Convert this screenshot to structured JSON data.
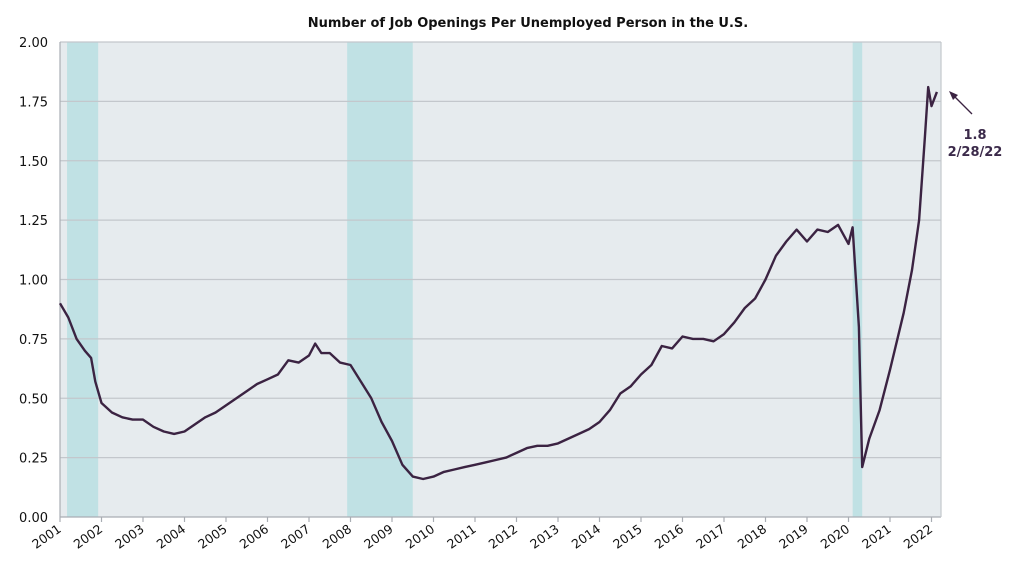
{
  "chart_data": {
    "type": "line",
    "title": "Number of Job Openings Per Unemployed Person in the U.S.",
    "xlabel": "",
    "ylabel": "",
    "xlim": [
      2001,
      2022.23
    ],
    "ylim": [
      0,
      2
    ],
    "grid": true,
    "y_ticks": [
      "0.00",
      "0.25",
      "0.50",
      "0.75",
      "1.00",
      "1.25",
      "1.50",
      "1.75",
      "2.00"
    ],
    "x_ticks": [
      "2001",
      "2002",
      "2003",
      "2004",
      "2005",
      "2006",
      "2007",
      "2008",
      "2009",
      "2010",
      "2011",
      "2012",
      "2013",
      "2014",
      "2015",
      "2016",
      "2017",
      "2018",
      "2019",
      "2020",
      "2021",
      "2022"
    ],
    "recessions": [
      [
        2001.17,
        2001.92
      ],
      [
        2007.92,
        2009.5
      ],
      [
        2020.1,
        2020.33
      ]
    ],
    "series": [
      {
        "name": "Job openings per unemployed person",
        "color": "#3b2342",
        "x": [
          2001.0,
          2001.2,
          2001.4,
          2001.6,
          2001.75,
          2001.85,
          2002.0,
          2002.25,
          2002.5,
          2002.75,
          2003.0,
          2003.25,
          2003.5,
          2003.75,
          2004.0,
          2004.25,
          2004.5,
          2004.75,
          2005.0,
          2005.25,
          2005.5,
          2005.75,
          2006.0,
          2006.25,
          2006.5,
          2006.75,
          2007.0,
          2007.15,
          2007.3,
          2007.5,
          2007.75,
          2008.0,
          2008.25,
          2008.5,
          2008.75,
          2009.0,
          2009.25,
          2009.5,
          2009.75,
          2010.0,
          2010.25,
          2010.5,
          2010.75,
          2011.0,
          2011.25,
          2011.5,
          2011.75,
          2012.0,
          2012.25,
          2012.5,
          2012.75,
          2013.0,
          2013.25,
          2013.5,
          2013.75,
          2014.0,
          2014.25,
          2014.5,
          2014.75,
          2015.0,
          2015.25,
          2015.5,
          2015.75,
          2016.0,
          2016.25,
          2016.5,
          2016.75,
          2017.0,
          2017.25,
          2017.5,
          2017.75,
          2018.0,
          2018.25,
          2018.5,
          2018.75,
          2019.0,
          2019.25,
          2019.5,
          2019.75,
          2020.0,
          2020.1,
          2020.25,
          2020.33,
          2020.5,
          2020.75,
          2021.0,
          2021.33,
          2021.53,
          2021.7,
          2021.84,
          2021.92,
          2022.0,
          2022.13
        ],
        "values": [
          0.9,
          0.84,
          0.75,
          0.7,
          0.67,
          0.57,
          0.48,
          0.44,
          0.42,
          0.41,
          0.41,
          0.38,
          0.36,
          0.35,
          0.36,
          0.39,
          0.42,
          0.44,
          0.47,
          0.5,
          0.53,
          0.56,
          0.58,
          0.6,
          0.66,
          0.65,
          0.68,
          0.73,
          0.69,
          0.69,
          0.65,
          0.64,
          0.57,
          0.5,
          0.4,
          0.32,
          0.22,
          0.17,
          0.16,
          0.17,
          0.19,
          0.2,
          0.21,
          0.22,
          0.23,
          0.24,
          0.25,
          0.27,
          0.29,
          0.3,
          0.3,
          0.31,
          0.33,
          0.35,
          0.37,
          0.4,
          0.45,
          0.52,
          0.55,
          0.6,
          0.64,
          0.72,
          0.71,
          0.76,
          0.75,
          0.75,
          0.74,
          0.77,
          0.82,
          0.88,
          0.92,
          1.0,
          1.1,
          1.16,
          1.21,
          1.16,
          1.21,
          1.2,
          1.23,
          1.15,
          1.22,
          0.8,
          0.21,
          0.33,
          0.45,
          0.62,
          0.86,
          1.04,
          1.25,
          1.6,
          1.81,
          1.73,
          1.79
        ]
      }
    ],
    "annotation": {
      "value_label": "1.8",
      "date_label": "2/28/22"
    }
  }
}
